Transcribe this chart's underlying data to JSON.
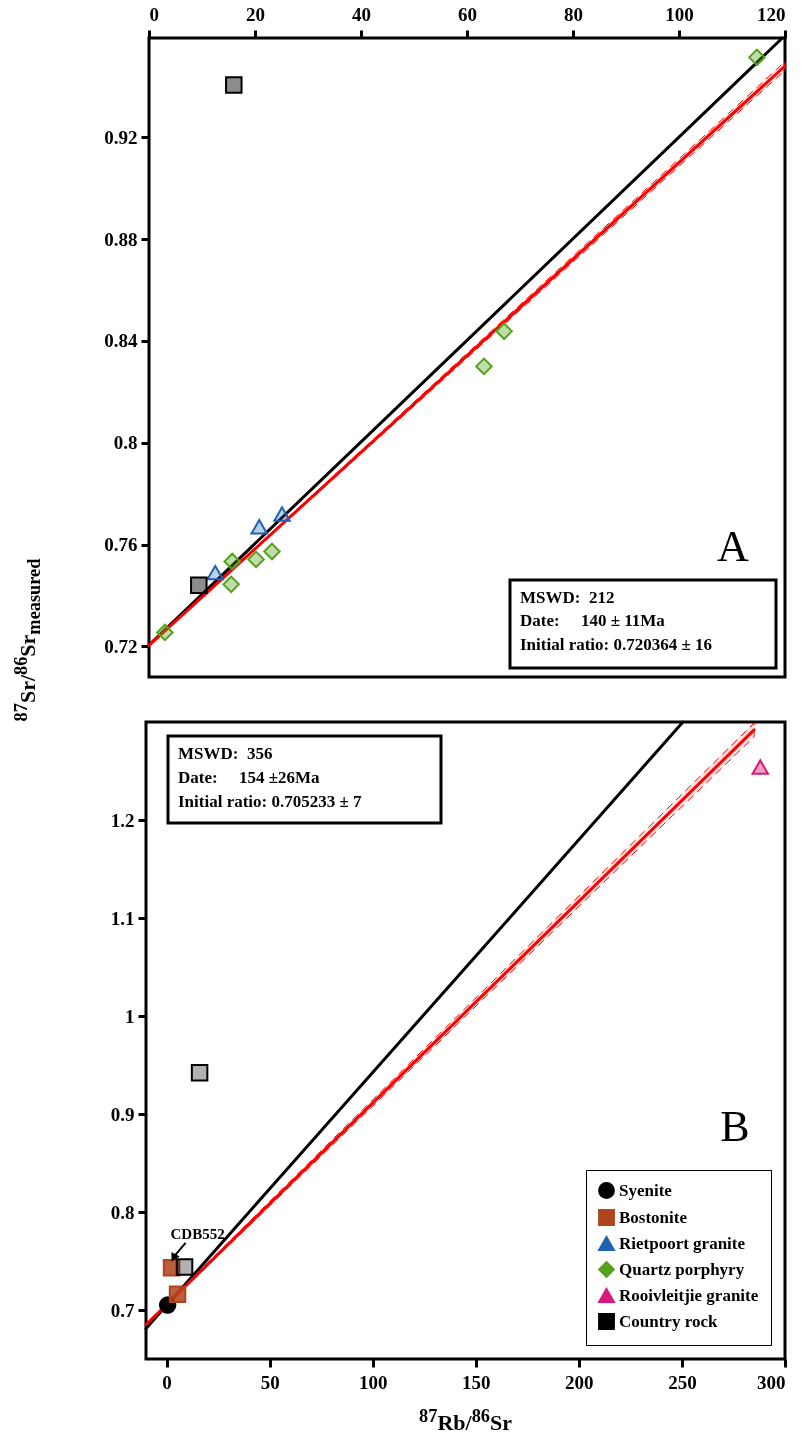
{
  "chart_data": [
    {
      "type": "scatter",
      "ylabel": "$^{87}$Sr/$^{86}$Sr$_{measured}$",
      "xlim": [
        0,
        120
      ],
      "xticks": [
        0,
        20,
        40,
        60,
        80,
        100,
        120
      ],
      "ylim": [
        0.708,
        0.959
      ],
      "yticks": [
        0.72,
        0.76,
        0.8,
        0.84,
        0.88,
        0.92
      ],
      "legend": false,
      "annotations": [
        "MSWD:  212",
        "Date:     140 ± 11Ma",
        "Initial ratio: 0.720364 ± 16",
        "A"
      ],
      "series": [
        {
          "type": "line",
          "color": "#000000",
          "x": [
            0,
            119.5
          ],
          "values": [
            0.7205,
            0.959
          ]
        },
        {
          "type": "line",
          "color": "#ff0000",
          "x": [
            0,
            120
          ],
          "values": [
            0.7204,
            0.948
          ],
          "lower": [
            0.7203,
            0.9463
          ],
          "upper": [
            0.7205,
            0.9497
          ]
        },
        {
          "color": "#1f63b0",
          "marker": "triangle",
          "x": [
            12.5,
            20.8,
            25.1
          ],
          "values": [
            0.749,
            0.767,
            0.772
          ]
        },
        {
          "color": "#55a31c",
          "marker": "diamond",
          "x": [
            3.0,
            9.6,
            15.5,
            15.7,
            20.2,
            23.2,
            63.2,
            67.0,
            114.7
          ],
          "values": [
            0.7255,
            null,
            0.7444,
            0.7534,
            0.7542,
            0.7573,
            0.83,
            0.8438,
            0.9514
          ]
        },
        {
          "color": "#000000",
          "marker": "square",
          "x": [
            9.4,
            16.0
          ],
          "values": [
            0.744,
            0.9405
          ]
        }
      ]
    },
    {
      "type": "scatter",
      "xlabel": "$^{87}$Rb/$^{86}$Sr",
      "xlim": [
        -10,
        300
      ],
      "xticks": [
        0,
        50,
        100,
        150,
        200,
        250,
        300
      ],
      "ylim": [
        0.65,
        1.3
      ],
      "yticks": [
        0.7,
        0.8,
        0.9,
        1,
        1.1,
        1.2
      ],
      "legend": "bottom right",
      "annotations": [
        "MSWD:  356",
        "Date:     154 ±26Ma",
        "Initial ratio: 0.705233 ± 7",
        "B",
        {
          "text": "CDB552",
          "x": 2.4,
          "y": 0.743
        }
      ],
      "series": [
        {
          "type": "line",
          "color": "#000000",
          "x": [
            -10,
            250.5
          ],
          "values": [
            0.681,
            1.3
          ]
        },
        {
          "type": "line",
          "color": "#ff0000",
          "x": [
            -10,
            285
          ],
          "values": [
            0.685,
            1.292
          ],
          "lower": [
            0.684,
            1.285
          ],
          "upper": [
            0.686,
            1.299
          ]
        },
        {
          "name": "Syenite",
          "color": "#000000",
          "marker": "circle",
          "x": [
            0.5
          ],
          "values": [
            0.705
          ]
        },
        {
          "name": "Bostonite",
          "color": "#b0441c",
          "marker": "square",
          "x": [
            2.4,
            5.3
          ],
          "values": [
            0.743,
            0.716
          ]
        },
        {
          "name": "Rietpoort granite",
          "color": "#1f63b0",
          "marker": "triangle"
        },
        {
          "name": "Quartz porphyry",
          "color": "#55a31c",
          "marker": "diamond"
        },
        {
          "name": "Rooivleitjie granite",
          "color": "#d81b7a",
          "marker": "triangle",
          "x": [
            288
          ],
          "values": [
            1.254
          ]
        },
        {
          "name": "Country rock",
          "color": "#000000",
          "marker": "square",
          "x": [
            8.7,
            16.0
          ],
          "values": [
            0.744,
            0.942
          ]
        }
      ]
    }
  ]
}
